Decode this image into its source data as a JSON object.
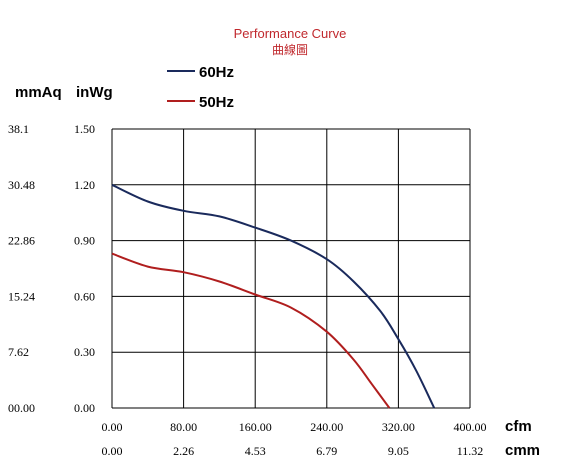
{
  "chart_data": {
    "type": "line",
    "title": "Performance Curve",
    "subtitle": "曲線圖",
    "y_units": [
      "mmAq",
      "inWg"
    ],
    "x_units": [
      "cfm",
      "cmm"
    ],
    "y_ticks_mmaq": [
      "38.1",
      "30.48",
      "22.86",
      "15.24",
      "7.62",
      "00.00"
    ],
    "y_ticks_inwg": [
      "1.50",
      "1.20",
      "0.90",
      "0.60",
      "0.30",
      "0.00"
    ],
    "x_ticks_cfm": [
      "0.00",
      "80.00",
      "160.00",
      "240.00",
      "320.00",
      "400.00"
    ],
    "x_ticks_cmm": [
      "0.00",
      "2.26",
      "4.53",
      "6.79",
      "9.05",
      "11.32"
    ],
    "xlim": [
      0,
      400
    ],
    "ylim": [
      0,
      1.5
    ],
    "grid": true,
    "legend_position": "top-left",
    "series": [
      {
        "name": "60Hz",
        "color": "#1a2a5c",
        "x": [
          0,
          40,
          80,
          120,
          160,
          200,
          240,
          270,
          300,
          320,
          340,
          360
        ],
        "y": [
          1.2,
          1.11,
          1.06,
          1.03,
          0.97,
          0.9,
          0.8,
          0.68,
          0.52,
          0.37,
          0.2,
          0.0
        ]
      },
      {
        "name": "50Hz",
        "color": "#b01e1e",
        "x": [
          0,
          40,
          80,
          120,
          160,
          200,
          240,
          270,
          290,
          310
        ],
        "y": [
          0.83,
          0.76,
          0.73,
          0.68,
          0.61,
          0.54,
          0.41,
          0.26,
          0.13,
          0.0
        ]
      }
    ]
  }
}
